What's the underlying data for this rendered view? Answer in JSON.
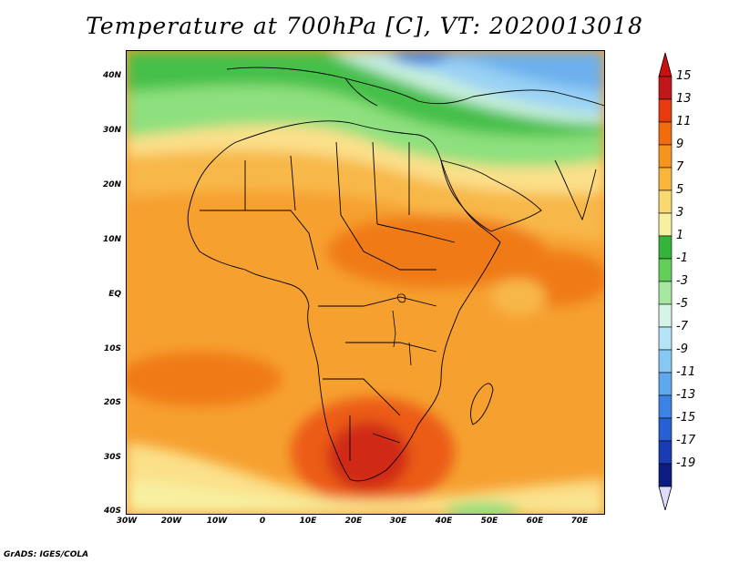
{
  "title": "Temperature at 700hPa [C], VT: 2020013018",
  "y_axis_labels": [
    "40N",
    "30N",
    "20N",
    "10N",
    "EQ",
    "10S",
    "20S",
    "30S",
    "40S"
  ],
  "x_axis_labels": [
    "30W",
    "20W",
    "10W",
    "0",
    "10E",
    "20E",
    "30E",
    "40E",
    "50E",
    "60E",
    "70E"
  ],
  "colorbar": {
    "labels": [
      "15",
      "13",
      "11",
      "9",
      "7",
      "5",
      "3",
      "1",
      "-1",
      "-3",
      "-5",
      "-7",
      "-9",
      "-11",
      "-13",
      "-15",
      "-17",
      "-19"
    ],
    "colors": [
      "#c01818",
      "#e83a10",
      "#f26c0c",
      "#f5951c",
      "#f8b63c",
      "#fad870",
      "#f7f0a0",
      "#34b43a",
      "#62d058",
      "#a6e8a0",
      "#d6f4e6",
      "#b4e4f6",
      "#86c8f2",
      "#5ea8ec",
      "#3c82e2",
      "#2660d4",
      "#173cb4",
      "#0c1c82"
    ],
    "max_color": "#cc1010",
    "min_color": "#dedefa"
  },
  "credit": "GrADS: IGES/COLA"
}
